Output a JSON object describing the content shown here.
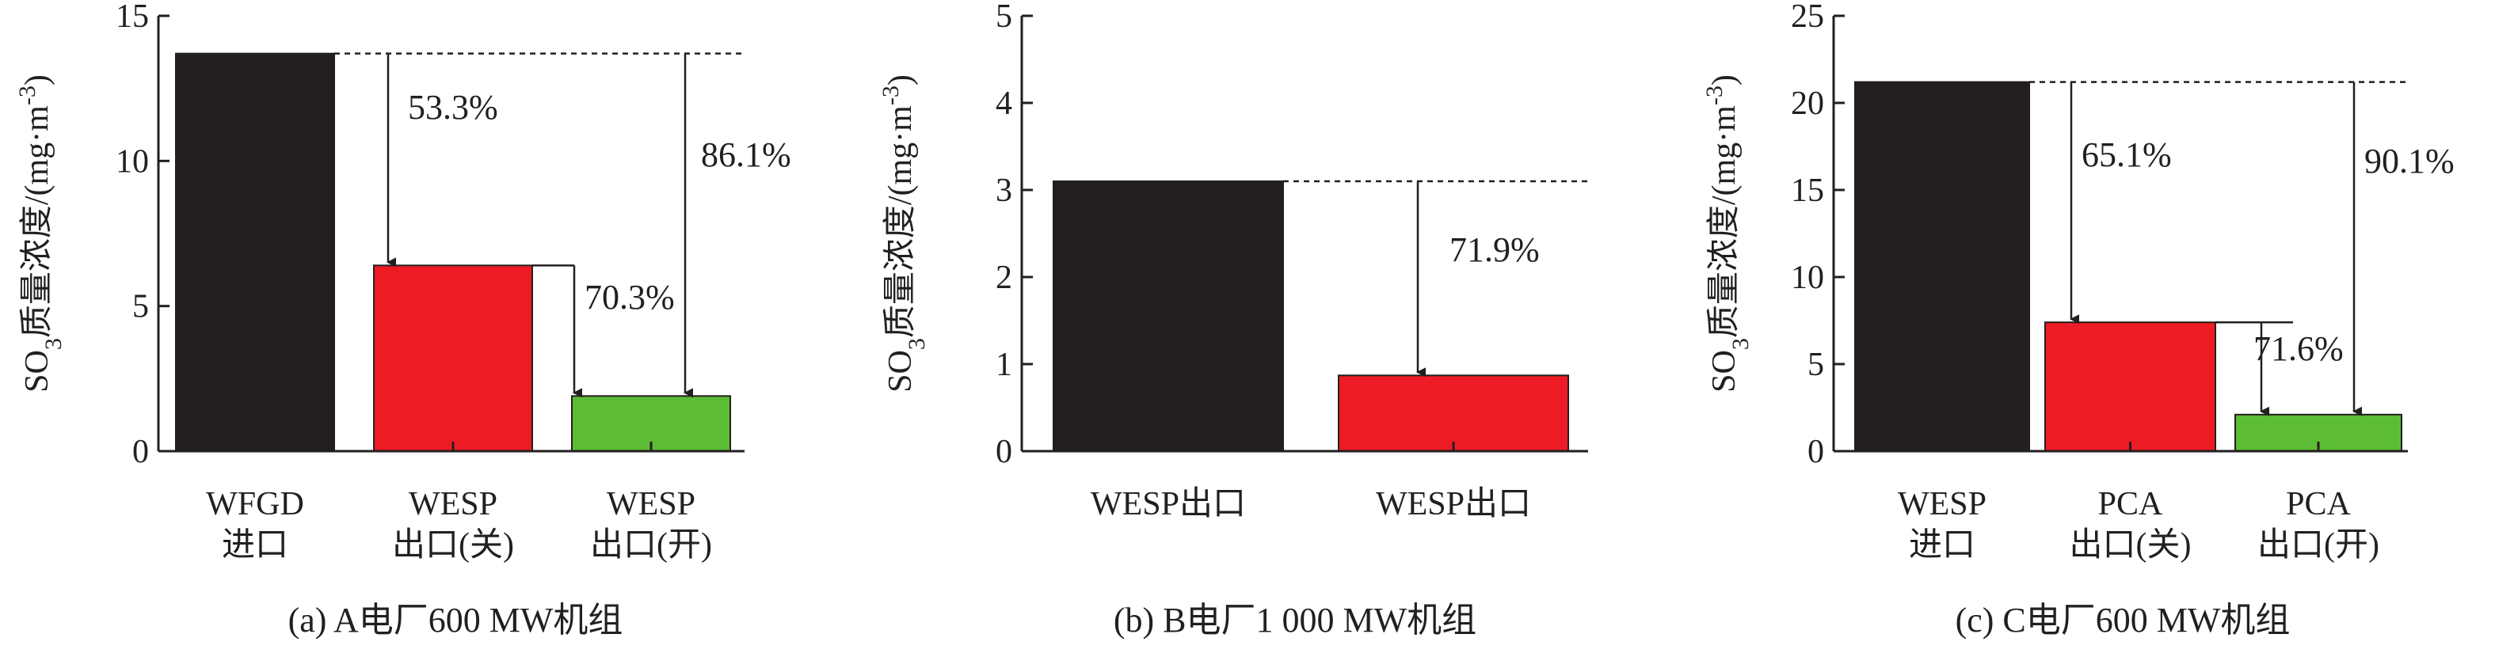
{
  "colors": {
    "ink": "#231f20",
    "black_bar": "#231f20",
    "red_bar": "#ed1c24",
    "green_bar": "#5cbd34"
  },
  "chart_data": [
    {
      "type": "bar",
      "caption": "(a) A电厂600 MW机组",
      "ylabel": "SO3质量浓度/(mg·m-3)",
      "ylim": [
        0,
        15
      ],
      "yticks": [
        0,
        5,
        10,
        15
      ],
      "categories": [
        "WFGD\n进口",
        "WESP\n出口(关)",
        "WESP\n出口(开)"
      ],
      "values": [
        13.7,
        6.4,
        1.9
      ],
      "colors": [
        "#231f20",
        "#ed1c24",
        "#5cbd34"
      ],
      "reference_line": 13.7,
      "annotations": [
        "53.3%",
        "70.3%",
        "86.1%"
      ]
    },
    {
      "type": "bar",
      "caption": "(b) B电厂1 000 MW机组",
      "ylabel": "SO3质量浓度/(mg·m-3)",
      "ylim": [
        0,
        5
      ],
      "yticks": [
        0,
        1,
        2,
        3,
        4,
        5
      ],
      "categories": [
        "WESP出口",
        "WESP出口"
      ],
      "values": [
        3.1,
        0.87
      ],
      "colors": [
        "#231f20",
        "#ed1c24"
      ],
      "reference_line": 3.1,
      "annotations": [
        "71.9%"
      ]
    },
    {
      "type": "bar",
      "caption": "(c) C电厂600 MW机组",
      "ylabel": "SO3质量浓度/(mg·m-3)",
      "ylim": [
        0,
        25
      ],
      "yticks": [
        0,
        5,
        10,
        15,
        20,
        25
      ],
      "categories": [
        "WESP\n进口",
        "PCA\n出口(关)",
        "PCA\n出口(开)"
      ],
      "values": [
        21.2,
        7.4,
        2.1
      ],
      "colors": [
        "#231f20",
        "#ed1c24",
        "#5cbd34"
      ],
      "reference_line": 21.2,
      "annotations": [
        "65.1%",
        "71.6%",
        "90.1%"
      ]
    }
  ]
}
